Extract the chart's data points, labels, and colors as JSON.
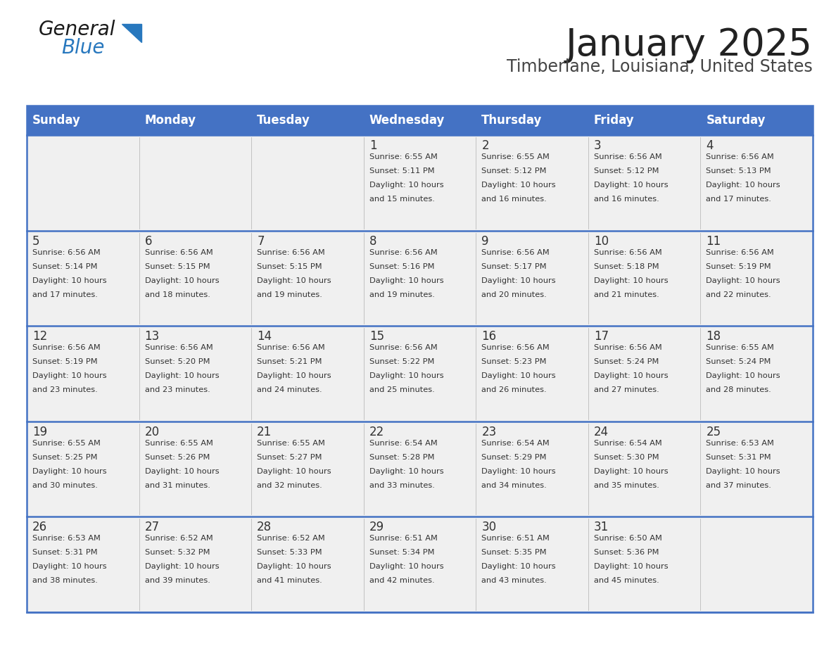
{
  "title": "January 2025",
  "subtitle": "Timberlane, Louisiana, United States",
  "days_header": [
    "Sunday",
    "Monday",
    "Tuesday",
    "Wednesday",
    "Thursday",
    "Friday",
    "Saturday"
  ],
  "header_bg": "#4472C4",
  "header_text_color": "#FFFFFF",
  "cell_bg_light": "#F0F0F0",
  "text_color": "#333333",
  "day_num_color": "#333333",
  "border_color": "#4472C4",
  "title_color": "#222222",
  "subtitle_color": "#444444",
  "logo_general_color": "#1a1a1a",
  "logo_blue_color": "#2878BE",
  "weeks": [
    [
      {
        "date": "",
        "sunrise": "",
        "sunset": "",
        "daylight": ""
      },
      {
        "date": "",
        "sunrise": "",
        "sunset": "",
        "daylight": ""
      },
      {
        "date": "",
        "sunrise": "",
        "sunset": "",
        "daylight": ""
      },
      {
        "date": "1",
        "sunrise": "6:55 AM",
        "sunset": "5:11 PM",
        "daylight": "10 hours and 15 minutes."
      },
      {
        "date": "2",
        "sunrise": "6:55 AM",
        "sunset": "5:12 PM",
        "daylight": "10 hours and 16 minutes."
      },
      {
        "date": "3",
        "sunrise": "6:56 AM",
        "sunset": "5:12 PM",
        "daylight": "10 hours and 16 minutes."
      },
      {
        "date": "4",
        "sunrise": "6:56 AM",
        "sunset": "5:13 PM",
        "daylight": "10 hours and 17 minutes."
      }
    ],
    [
      {
        "date": "5",
        "sunrise": "6:56 AM",
        "sunset": "5:14 PM",
        "daylight": "10 hours and 17 minutes."
      },
      {
        "date": "6",
        "sunrise": "6:56 AM",
        "sunset": "5:15 PM",
        "daylight": "10 hours and 18 minutes."
      },
      {
        "date": "7",
        "sunrise": "6:56 AM",
        "sunset": "5:15 PM",
        "daylight": "10 hours and 19 minutes."
      },
      {
        "date": "8",
        "sunrise": "6:56 AM",
        "sunset": "5:16 PM",
        "daylight": "10 hours and 19 minutes."
      },
      {
        "date": "9",
        "sunrise": "6:56 AM",
        "sunset": "5:17 PM",
        "daylight": "10 hours and 20 minutes."
      },
      {
        "date": "10",
        "sunrise": "6:56 AM",
        "sunset": "5:18 PM",
        "daylight": "10 hours and 21 minutes."
      },
      {
        "date": "11",
        "sunrise": "6:56 AM",
        "sunset": "5:19 PM",
        "daylight": "10 hours and 22 minutes."
      }
    ],
    [
      {
        "date": "12",
        "sunrise": "6:56 AM",
        "sunset": "5:19 PM",
        "daylight": "10 hours and 23 minutes."
      },
      {
        "date": "13",
        "sunrise": "6:56 AM",
        "sunset": "5:20 PM",
        "daylight": "10 hours and 23 minutes."
      },
      {
        "date": "14",
        "sunrise": "6:56 AM",
        "sunset": "5:21 PM",
        "daylight": "10 hours and 24 minutes."
      },
      {
        "date": "15",
        "sunrise": "6:56 AM",
        "sunset": "5:22 PM",
        "daylight": "10 hours and 25 minutes."
      },
      {
        "date": "16",
        "sunrise": "6:56 AM",
        "sunset": "5:23 PM",
        "daylight": "10 hours and 26 minutes."
      },
      {
        "date": "17",
        "sunrise": "6:56 AM",
        "sunset": "5:24 PM",
        "daylight": "10 hours and 27 minutes."
      },
      {
        "date": "18",
        "sunrise": "6:55 AM",
        "sunset": "5:24 PM",
        "daylight": "10 hours and 28 minutes."
      }
    ],
    [
      {
        "date": "19",
        "sunrise": "6:55 AM",
        "sunset": "5:25 PM",
        "daylight": "10 hours and 30 minutes."
      },
      {
        "date": "20",
        "sunrise": "6:55 AM",
        "sunset": "5:26 PM",
        "daylight": "10 hours and 31 minutes."
      },
      {
        "date": "21",
        "sunrise": "6:55 AM",
        "sunset": "5:27 PM",
        "daylight": "10 hours and 32 minutes."
      },
      {
        "date": "22",
        "sunrise": "6:54 AM",
        "sunset": "5:28 PM",
        "daylight": "10 hours and 33 minutes."
      },
      {
        "date": "23",
        "sunrise": "6:54 AM",
        "sunset": "5:29 PM",
        "daylight": "10 hours and 34 minutes."
      },
      {
        "date": "24",
        "sunrise": "6:54 AM",
        "sunset": "5:30 PM",
        "daylight": "10 hours and 35 minutes."
      },
      {
        "date": "25",
        "sunrise": "6:53 AM",
        "sunset": "5:31 PM",
        "daylight": "10 hours and 37 minutes."
      }
    ],
    [
      {
        "date": "26",
        "sunrise": "6:53 AM",
        "sunset": "5:31 PM",
        "daylight": "10 hours and 38 minutes."
      },
      {
        "date": "27",
        "sunrise": "6:52 AM",
        "sunset": "5:32 PM",
        "daylight": "10 hours and 39 minutes."
      },
      {
        "date": "28",
        "sunrise": "6:52 AM",
        "sunset": "5:33 PM",
        "daylight": "10 hours and 41 minutes."
      },
      {
        "date": "29",
        "sunrise": "6:51 AM",
        "sunset": "5:34 PM",
        "daylight": "10 hours and 42 minutes."
      },
      {
        "date": "30",
        "sunrise": "6:51 AM",
        "sunset": "5:35 PM",
        "daylight": "10 hours and 43 minutes."
      },
      {
        "date": "31",
        "sunrise": "6:50 AM",
        "sunset": "5:36 PM",
        "daylight": "10 hours and 45 minutes."
      },
      {
        "date": "",
        "sunrise": "",
        "sunset": "",
        "daylight": ""
      }
    ]
  ]
}
